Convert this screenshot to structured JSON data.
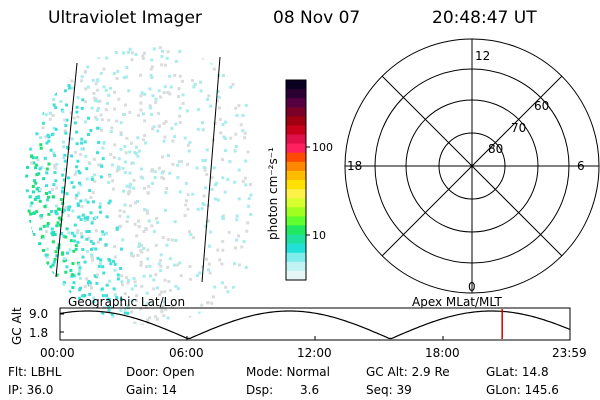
{
  "header": {
    "title": "Ultraviolet Imager",
    "date": "08 Nov 07",
    "time": "20:48:47 UT"
  },
  "colorbar": {
    "unit_label": "photon cm⁻²s⁻¹",
    "ticks": [
      "100",
      "10"
    ],
    "colors": [
      "#0a0020",
      "#2a0030",
      "#550040",
      "#7a0028",
      "#a00010",
      "#c8001a",
      "#e0104a",
      "#ff2060",
      "#ff4a00",
      "#ff8800",
      "#ffbb00",
      "#ffe000",
      "#fff04a",
      "#d8ff30",
      "#a0ff20",
      "#60ff30",
      "#20e860",
      "#20e0a0",
      "#20e0d8",
      "#80ecec",
      "#c0f4f4",
      "#e6f6f6"
    ]
  },
  "left_panel": {
    "label": "Geographic Lat/Lon"
  },
  "polar_plot": {
    "label": "Apex MLat/MLT",
    "mlt_labels": {
      "top": "12",
      "left": "18",
      "right": "6",
      "bottom": "0"
    },
    "lat_labels": [
      "60",
      "70",
      "80"
    ]
  },
  "altitude_plot": {
    "ylabel": "GC Alt",
    "y_ticks": [
      "9.0",
      "1.8"
    ],
    "x_ticks": [
      "00:00",
      "06:00",
      "12:00",
      "18:00",
      "23:59"
    ],
    "marker_color": "#cc0000",
    "marker_time_hours": 20.81
  },
  "info": {
    "flt": "Flt: LBHL",
    "ip": "IP: 36.0",
    "door": "Door: Open",
    "gain": "Gain: 14",
    "mode": "Mode: Normal",
    "dsp_label": "Dsp:",
    "dsp_value": "3.6",
    "gcalt": "GC Alt: 2.9 Re",
    "seq": "Seq: 39",
    "glat": "GLat: 14.8",
    "glon": "GLon: 145.6"
  }
}
